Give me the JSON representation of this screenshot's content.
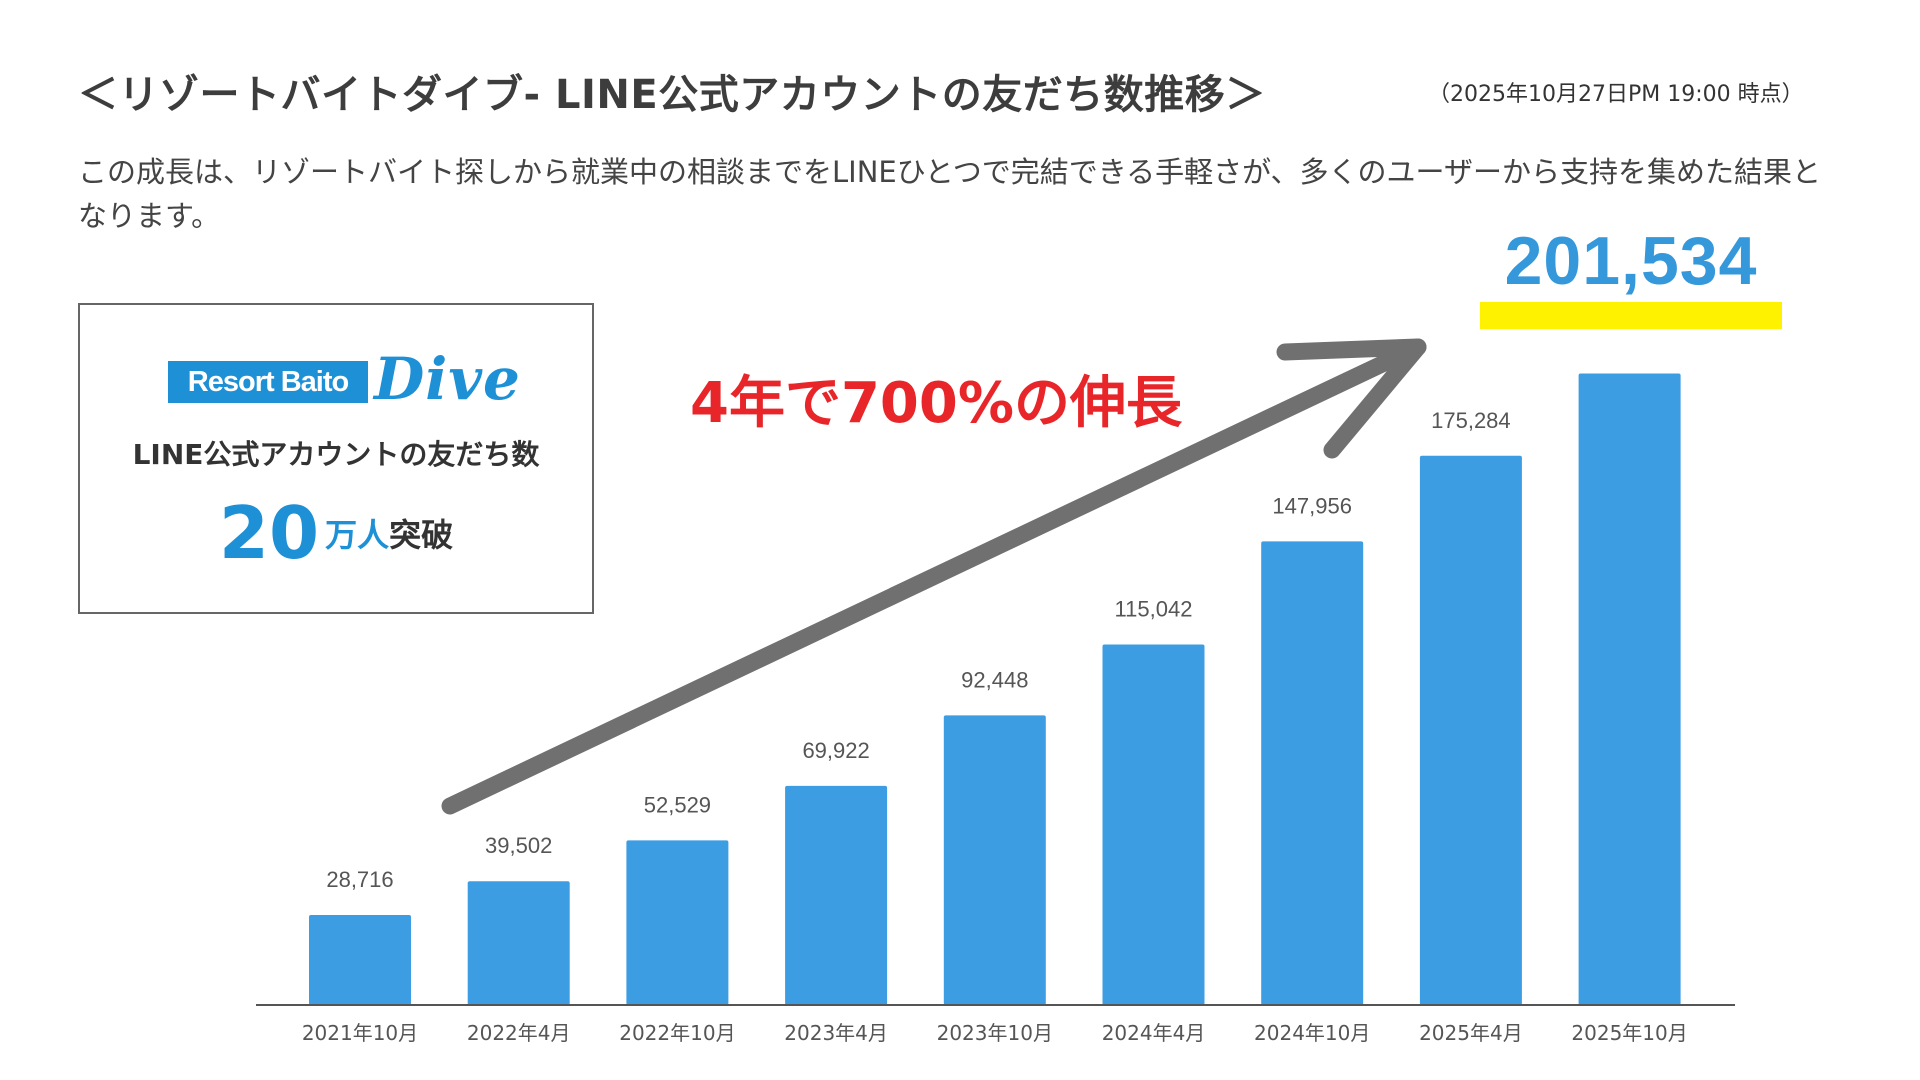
{
  "header": {
    "title": "＜リゾートバイトダイブ- LINE公式アカウントの友だち数推移＞",
    "timestamp": "（2025年10月27日PM 19:00 時点）",
    "description": "この成長は、リゾートバイト探しから就業中の相談までをLINEひとつで完結できる手軽さが、多くのユーザーから支持を集めた結果となります。"
  },
  "infobox": {
    "logo_text": "Resort Baito",
    "logo_script": "Dive",
    "label": "LINE公式アカウントの友だち数",
    "number": "20",
    "unit": "万人",
    "suffix": "突破"
  },
  "annotations": {
    "growth_text": "4年で700%の伸長",
    "total": "201,534"
  },
  "colors": {
    "bar": "#3d9de2",
    "arrow": "#707070",
    "growth_text": "#e8262a",
    "highlight": "#fff200",
    "axis": "#555555"
  },
  "chart_data": {
    "type": "bar",
    "title": "",
    "xlabel": "",
    "ylabel": "",
    "categories": [
      "2021年10月",
      "2022年4月",
      "2022年10月",
      "2023年4月",
      "2023年10月",
      "2024年4月",
      "2024年10月",
      "2025年4月",
      "2025年10月"
    ],
    "values": [
      28716,
      39502,
      52529,
      69922,
      92448,
      115042,
      147956,
      175284,
      201534
    ],
    "value_labels": [
      "28,716",
      "39,502",
      "52,529",
      "69,922",
      "92,448",
      "115,042",
      "147,956",
      "175,284",
      ""
    ],
    "ylim": [
      0,
      225000
    ],
    "grid": false
  }
}
